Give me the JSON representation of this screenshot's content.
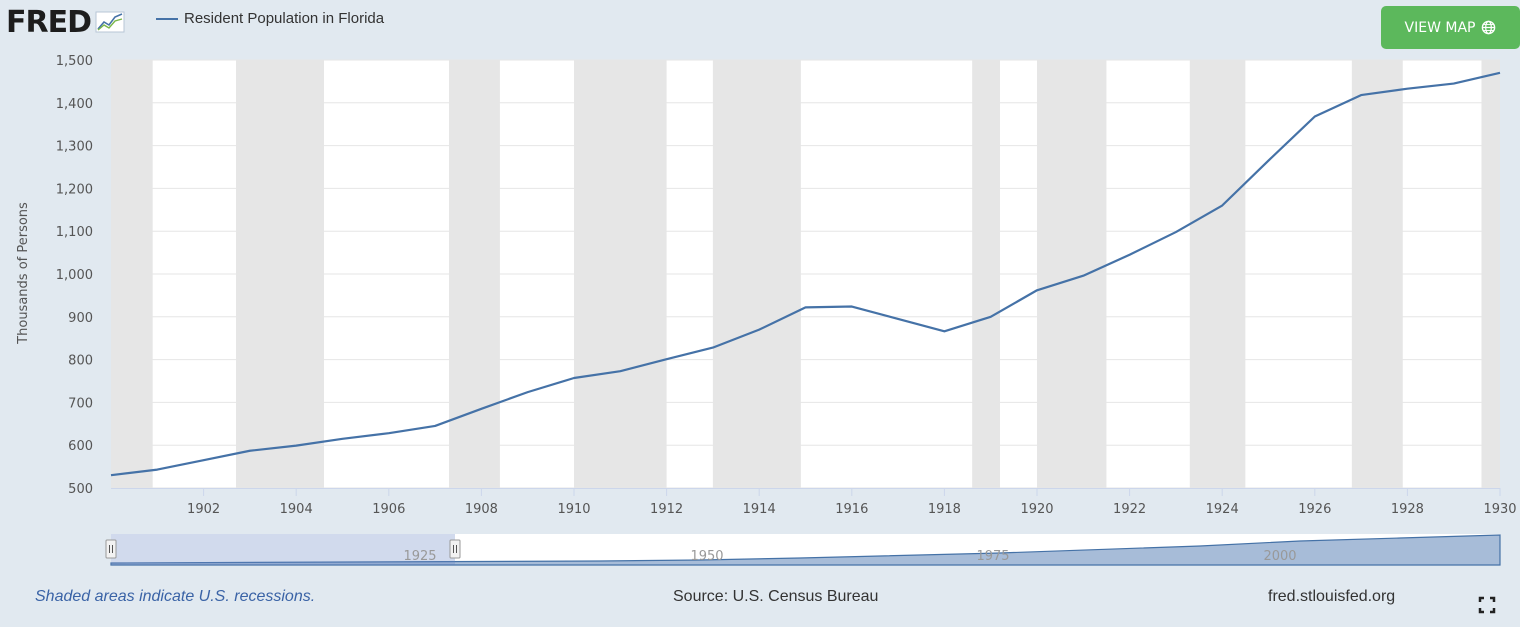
{
  "header": {
    "logo_text": "FRED",
    "logo_icon": "line-graph-icon",
    "legend_label": "Resident Population in Florida",
    "view_map_label": "VIEW MAP",
    "view_map_icon": "globe-icon"
  },
  "footer": {
    "note": "Shaded areas indicate U.S. recessions.",
    "source": "Source: U.S. Census Bureau",
    "site": "fred.stlouisfed.org",
    "fullscreen_icon": "fullscreen-icon"
  },
  "navigator": {
    "year_labels": [
      "1925",
      "1950",
      "1975",
      "2000"
    ]
  },
  "colors": {
    "series": "#4572a7",
    "recession": "#e6e6e6",
    "button": "#5cb85c",
    "background": "#e1e9f0"
  },
  "chart_data": {
    "type": "line",
    "title": "",
    "xlabel": "",
    "ylabel": "Thousands of Persons",
    "xlim": [
      1900,
      1930
    ],
    "ylim": [
      500,
      1500
    ],
    "grid": true,
    "legend": "top-left",
    "x_ticks": [
      1902,
      1904,
      1906,
      1908,
      1910,
      1912,
      1914,
      1916,
      1918,
      1920,
      1922,
      1924,
      1926,
      1928,
      1930
    ],
    "y_ticks": [
      500,
      600,
      700,
      800,
      900,
      1000,
      1100,
      1200,
      1300,
      1400,
      1500
    ],
    "recessions": [
      [
        1899.5,
        1900.9
      ],
      [
        1902.7,
        1904.6
      ],
      [
        1907.3,
        1908.4
      ],
      [
        1910.0,
        1912.0
      ],
      [
        1913.0,
        1914.9
      ],
      [
        1918.6,
        1919.2
      ],
      [
        1920.0,
        1921.5
      ],
      [
        1923.3,
        1924.5
      ],
      [
        1926.8,
        1927.9
      ],
      [
        1929.6,
        1930.0
      ]
    ],
    "series": [
      {
        "name": "Resident Population in Florida",
        "x": [
          1900,
          1901,
          1902,
          1903,
          1904,
          1905,
          1906,
          1907,
          1908,
          1909,
          1910,
          1911,
          1912,
          1913,
          1914,
          1915,
          1916,
          1917,
          1918,
          1919,
          1920,
          1921,
          1922,
          1923,
          1924,
          1925,
          1926,
          1927,
          1928,
          1929,
          1930
        ],
        "values": [
          530,
          543,
          565,
          587,
          599,
          615,
          628,
          645,
          685,
          724,
          757,
          773,
          801,
          828,
          870,
          922,
          924,
          895,
          866,
          900,
          962,
          996,
          1045,
          1098,
          1160,
          1265,
          1368,
          1418,
          1433,
          1445,
          1470
        ]
      }
    ]
  }
}
